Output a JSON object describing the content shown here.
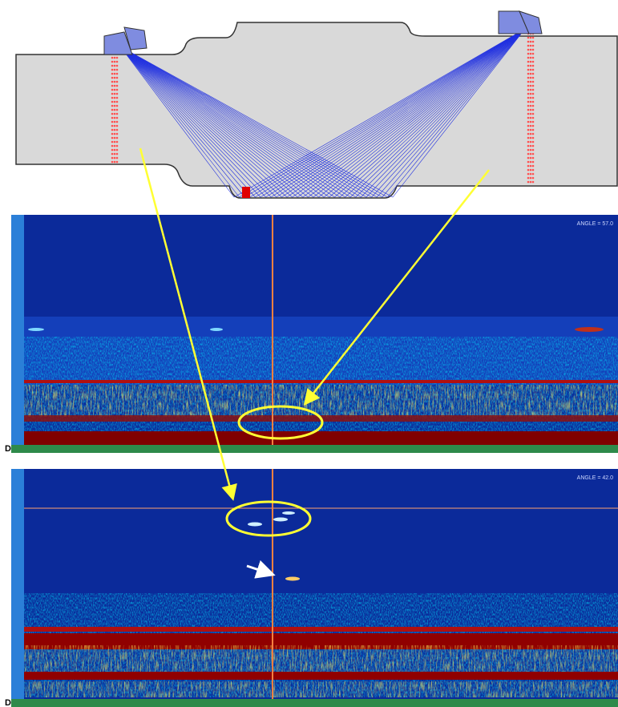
{
  "panels": [
    {
      "angle_label": "ANGLE = 57.0",
      "corner_label": "D"
    },
    {
      "angle_label": "ANGLE = 42.0",
      "corner_label": "D"
    }
  ]
}
